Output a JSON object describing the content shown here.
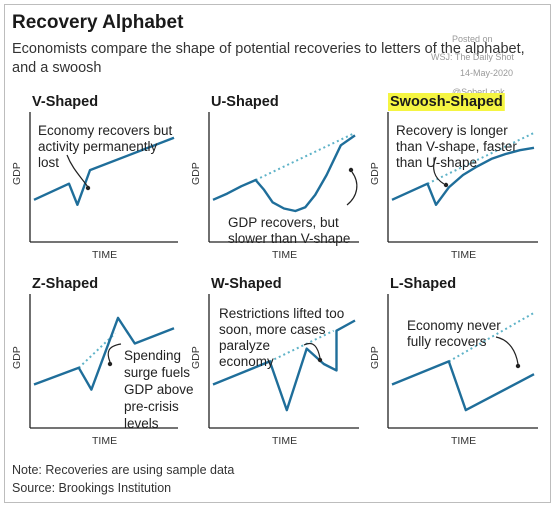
{
  "title": "Recovery Alphabet",
  "subtitle": "Economists compare the shape of potential recoveries to letters of the alphabet, and a swoosh",
  "watermark": {
    "posted": "Posted on",
    "source_line": "WSJ: The Daily Shot",
    "date": "14-May-2020",
    "handle": "@SoberLook"
  },
  "note": "Note: Recoveries are using sample data",
  "source": "Source: Brookings Institution",
  "colors": {
    "line": "#1f6e9a",
    "trend": "#5fb3c8",
    "highlight": "#f5f542",
    "axis": "#222222"
  },
  "chart_data": [
    {
      "type": "line",
      "title": "V-Shaped",
      "highlight": false,
      "xlabel": "TIME",
      "ylabel": "GDP",
      "x": [
        0,
        25,
        31,
        40,
        100
      ],
      "y": [
        34,
        47,
        30,
        58,
        84
      ],
      "trend": [],
      "annotation": [
        "Economy recovers but",
        "activity permanently",
        "lost"
      ]
    },
    {
      "type": "line",
      "title": "U-Shaped",
      "highlight": false,
      "xlabel": "TIME",
      "ylabel": "GDP",
      "x": [
        0,
        10,
        20,
        30,
        36,
        42,
        50,
        58,
        65,
        72,
        80,
        90,
        100
      ],
      "y": [
        34,
        39,
        45,
        50,
        42,
        32,
        27,
        25,
        28,
        38,
        54,
        78,
        86
      ],
      "trend": [
        [
          30,
          50
        ],
        [
          100,
          88
        ]
      ],
      "annotation": [
        "GDP recovers, but",
        "slower than V-shape"
      ]
    },
    {
      "type": "line",
      "title": "Swoosh-Shaped",
      "highlight": true,
      "xlabel": "TIME",
      "ylabel": "GDP",
      "x": [
        0,
        25,
        31,
        40,
        50,
        60,
        70,
        80,
        90,
        100
      ],
      "y": [
        34,
        47,
        30,
        44,
        54,
        61,
        67,
        71,
        74,
        76
      ],
      "trend": [
        [
          25,
          47
        ],
        [
          100,
          88
        ]
      ],
      "annotation": [
        "Recovery is longer",
        "than V-shape, faster",
        "than U-shape"
      ]
    },
    {
      "type": "line",
      "title": "Z-Shaped",
      "highlight": false,
      "xlabel": "TIME",
      "ylabel": "GDP",
      "x": [
        0,
        32,
        41,
        60,
        72,
        100
      ],
      "y": [
        34,
        47,
        30,
        86,
        66,
        78
      ],
      "trend": [
        [
          32,
          47
        ],
        [
          58,
          74
        ]
      ],
      "annotation": [
        "Spending",
        "surge fuels",
        "GDP above",
        "pre-crisis",
        "levels"
      ]
    },
    {
      "type": "line",
      "title": "W-Shaped",
      "highlight": false,
      "xlabel": "TIME",
      "ylabel": "GDP",
      "x": [
        0,
        40,
        52,
        66,
        78,
        87,
        87,
        100
      ],
      "y": [
        34,
        52,
        14,
        62,
        50,
        45,
        76,
        84
      ],
      "trend": [
        [
          40,
          52
        ],
        [
          85,
          76
        ]
      ],
      "annotation": [
        "Restrictions lifted too",
        "soon, more cases",
        "paralyze",
        "economy"
      ]
    },
    {
      "type": "line",
      "title": "L-Shaped",
      "highlight": false,
      "xlabel": "TIME",
      "ylabel": "GDP",
      "x": [
        0,
        40,
        52,
        100
      ],
      "y": [
        34,
        52,
        14,
        42
      ],
      "trend": [
        [
          40,
          52
        ],
        [
          100,
          90
        ]
      ],
      "annotation": [
        "Economy never",
        "fully recovers"
      ]
    }
  ]
}
